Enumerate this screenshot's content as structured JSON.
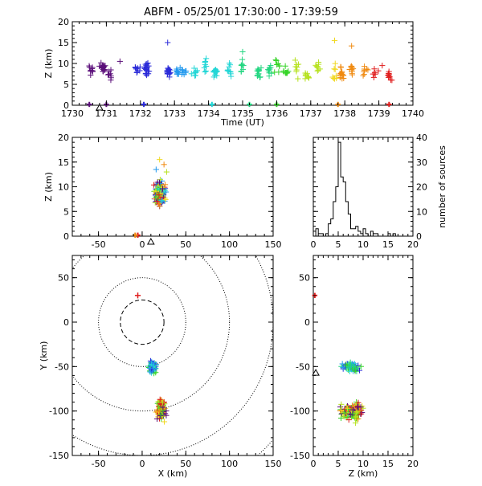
{
  "chart_data": [
    {
      "panel": "time-height",
      "type": "scatter",
      "title": "ABFM - 05/25/01 17:30:00 - 17:39:59",
      "xlabel": "Time (UT)",
      "ylabel": "Z (km)",
      "xlim": [
        1730,
        1740
      ],
      "ylim": [
        0,
        20
      ],
      "xticks": [
        "1730",
        "1731",
        "1732",
        "1733",
        "1734",
        "1735",
        "1736",
        "1737",
        "1738",
        "1739",
        "1740"
      ],
      "yticks": [
        "0",
        "5",
        "10",
        "15",
        "20"
      ],
      "station_marker": {
        "x": 1730.8,
        "y": 0
      },
      "color_by": "time",
      "colors": [
        "#5b0f7a",
        "#2b2bd8",
        "#2299ee",
        "#22d6d6",
        "#22d680",
        "#36d428",
        "#b6e21e",
        "#f0d820",
        "#f08a10",
        "#e01e1e"
      ],
      "note": "points estimated, clustered by time"
    },
    {
      "panel": "x-height",
      "type": "scatter",
      "xlim": [
        -80,
        150
      ],
      "ylim": [
        0,
        20
      ],
      "xticks": [
        "-50",
        "0",
        "50",
        "100",
        "150"
      ],
      "yticks": [
        "0",
        "5",
        "10",
        "15",
        "20"
      ],
      "ylabel": "Z (km)",
      "station_marker": {
        "x": 10,
        "y": 0
      }
    },
    {
      "panel": "height-histogram",
      "type": "bar",
      "ylabel": "number of sources",
      "xlim": [
        0,
        20
      ],
      "ylim": [
        0,
        40
      ],
      "xticks": [
        "0",
        "5",
        "10",
        "15",
        "20"
      ],
      "yticks": [
        "0",
        "10",
        "20",
        "30",
        "40"
      ],
      "bin_width": 0.5,
      "bin_start": 0,
      "counts": [
        0,
        3,
        1,
        1,
        0,
        1,
        5,
        7,
        14,
        20,
        38,
        24,
        22,
        14,
        9,
        3,
        3,
        4,
        2,
        1,
        3,
        1,
        0,
        2,
        1,
        1,
        0,
        0,
        0,
        0,
        1,
        0,
        1,
        0,
        0,
        0,
        0,
        0,
        0,
        0
      ]
    },
    {
      "panel": "plan-view",
      "type": "scatter",
      "xlabel": "X (km)",
      "ylabel": "Y (km)",
      "xlim": [
        -80,
        150
      ],
      "ylim": [
        -150,
        75
      ],
      "xticks": [
        "-50",
        "0",
        "50",
        "100",
        "150"
      ],
      "yticks": [
        "-150",
        "-100",
        "-50",
        "0",
        "50"
      ],
      "range_rings_km": [
        25,
        50,
        100,
        150,
        200
      ],
      "network_center": [
        0,
        0
      ]
    },
    {
      "panel": "height-y",
      "type": "scatter",
      "xlabel": "Z (km)",
      "xlim": [
        0,
        20
      ],
      "ylim": [
        -150,
        75
      ],
      "xticks": [
        "0",
        "5",
        "10",
        "15",
        "20"
      ],
      "yticks": [
        "-150",
        "-100",
        "-50",
        "0",
        "50"
      ],
      "station_marker": {
        "x": 0,
        "y": -57
      }
    }
  ]
}
